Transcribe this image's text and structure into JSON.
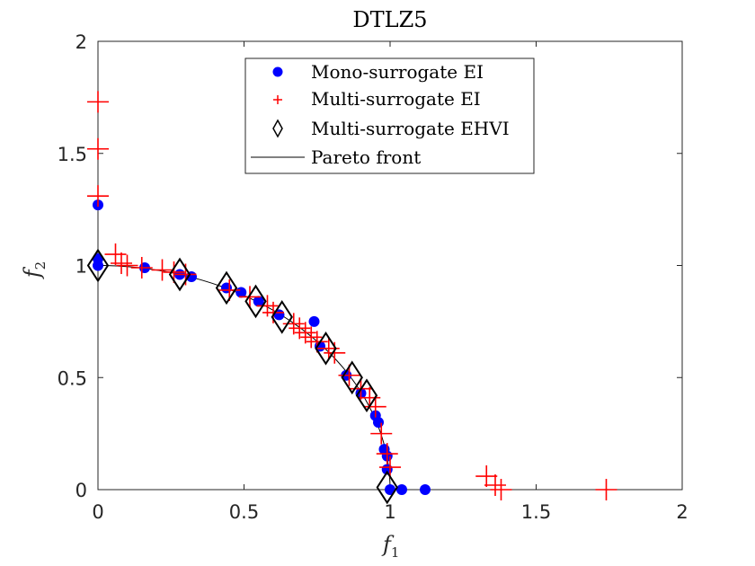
{
  "chart_data": {
    "type": "scatter",
    "title": "DTLZ5",
    "xlabel": {
      "base": "f",
      "sub": "1"
    },
    "ylabel": {
      "base": "f",
      "sub": "2"
    },
    "xlim": [
      0,
      2
    ],
    "ylim": [
      0,
      2
    ],
    "xticks": [
      "0",
      "0.5",
      "1",
      "1.5",
      "2"
    ],
    "yticks": [
      "0",
      "0.5",
      "1",
      "1.5",
      "2"
    ],
    "xtick_values": [
      0,
      0.5,
      1,
      1.5,
      2
    ],
    "ytick_values": [
      0,
      0.5,
      1,
      1.5,
      2
    ],
    "grid": false,
    "legend": {
      "placement": "top-center",
      "entries": [
        {
          "label": "Mono-surrogate EI",
          "marker": "circle",
          "color": "#0000ff"
        },
        {
          "label": "Multi-surrogate EI",
          "marker": "plus",
          "color": "#ff0000"
        },
        {
          "label": "Multi-surrogate EHVI",
          "marker": "diamond",
          "color": "#000000"
        },
        {
          "label": "Pareto front",
          "marker": "line",
          "color": "#000000"
        }
      ]
    },
    "series": [
      {
        "name": "Mono-surrogate EI",
        "marker": "circle",
        "color": "#0000ff",
        "points": [
          [
            0.0,
            1.27
          ],
          [
            0.0,
            1.03
          ],
          [
            0.0,
            1.0
          ],
          [
            0.16,
            0.99
          ],
          [
            0.28,
            0.96
          ],
          [
            0.32,
            0.95
          ],
          [
            0.44,
            0.9
          ],
          [
            0.49,
            0.88
          ],
          [
            0.55,
            0.84
          ],
          [
            0.62,
            0.78
          ],
          [
            0.74,
            0.75
          ],
          [
            0.76,
            0.64
          ],
          [
            0.85,
            0.51
          ],
          [
            0.9,
            0.43
          ],
          [
            0.95,
            0.33
          ],
          [
            0.96,
            0.3
          ],
          [
            0.98,
            0.18
          ],
          [
            0.99,
            0.15
          ],
          [
            0.99,
            0.09
          ],
          [
            1.0,
            0.0
          ],
          [
            1.04,
            0.0
          ],
          [
            1.12,
            0.0
          ]
        ]
      },
      {
        "name": "Multi-surrogate EI",
        "marker": "plus",
        "color": "#ff0000",
        "points": [
          [
            0.0,
            1.73
          ],
          [
            0.0,
            1.52
          ],
          [
            0.0,
            1.31
          ],
          [
            0.06,
            1.05
          ],
          [
            0.08,
            1.01
          ],
          [
            0.1,
            1.0
          ],
          [
            0.15,
            0.99
          ],
          [
            0.22,
            0.98
          ],
          [
            0.26,
            0.97
          ],
          [
            0.3,
            0.96
          ],
          [
            0.45,
            0.89
          ],
          [
            0.52,
            0.86
          ],
          [
            0.58,
            0.82
          ],
          [
            0.6,
            0.79
          ],
          [
            0.67,
            0.74
          ],
          [
            0.69,
            0.72
          ],
          [
            0.71,
            0.7
          ],
          [
            0.73,
            0.68
          ],
          [
            0.75,
            0.66
          ],
          [
            0.79,
            0.63
          ],
          [
            0.81,
            0.61
          ],
          [
            0.86,
            0.51
          ],
          [
            0.9,
            0.45
          ],
          [
            0.93,
            0.41
          ],
          [
            0.95,
            0.37
          ],
          [
            0.97,
            0.25
          ],
          [
            0.99,
            0.16
          ],
          [
            1.0,
            0.1
          ],
          [
            1.33,
            0.06
          ],
          [
            1.36,
            0.02
          ],
          [
            1.38,
            0.0
          ],
          [
            1.74,
            0.0
          ]
        ]
      },
      {
        "name": "Multi-surrogate EHVI",
        "marker": "diamond",
        "color": "#000000",
        "points": [
          [
            0.0,
            1.0
          ],
          [
            0.28,
            0.96
          ],
          [
            0.44,
            0.9
          ],
          [
            0.54,
            0.84
          ],
          [
            0.63,
            0.77
          ],
          [
            0.78,
            0.63
          ],
          [
            0.87,
            0.5
          ],
          [
            0.92,
            0.42
          ],
          [
            0.99,
            0.01
          ]
        ]
      }
    ],
    "pareto_front": {
      "name": "Pareto front",
      "shape": "quarter circle of radius 1 from (0, 1) to (1, 0)"
    }
  }
}
